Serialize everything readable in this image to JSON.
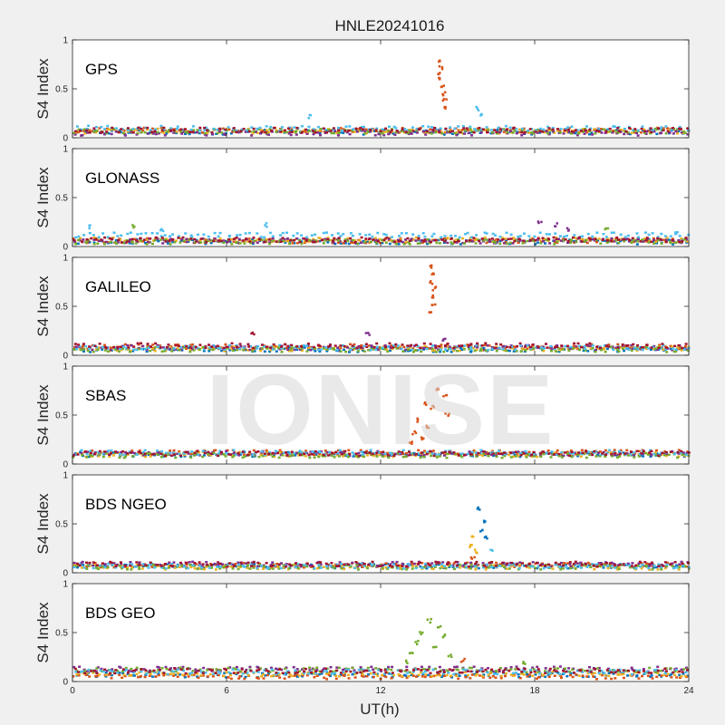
{
  "chart_data": {
    "type": "scatter",
    "title": "HNLE20241016",
    "xlabel": "UT(h)",
    "ylabel": "S4 Index",
    "xlim": [
      0,
      24
    ],
    "ylim": [
      0,
      1
    ],
    "xticks": [
      "0",
      "6",
      "12",
      "18",
      "24"
    ],
    "yticks": [
      "0",
      "0.5",
      "1"
    ],
    "watermark": "IONISE",
    "series_colors": [
      "#0072bd",
      "#d95319",
      "#edb120",
      "#7e2f8e",
      "#77ac30",
      "#4dbeee",
      "#a2142f"
    ],
    "panels": [
      {
        "name": "GPS",
        "baseline": [
          {
            "color": "#0072bd",
            "level": 0.06
          },
          {
            "color": "#d95319",
            "level": 0.08
          },
          {
            "color": "#edb120",
            "level": 0.07
          },
          {
            "color": "#7e2f8e",
            "level": 0.05
          },
          {
            "color": "#77ac30",
            "level": 0.07
          },
          {
            "color": "#4dbeee",
            "level": 0.1
          },
          {
            "color": "#a2142f",
            "level": 0.08
          }
        ],
        "events": [
          {
            "color": "#d95319",
            "x": 14.3,
            "y": 0.78
          },
          {
            "color": "#d95319",
            "x": 14.35,
            "y": 0.72
          },
          {
            "color": "#d95319",
            "x": 14.3,
            "y": 0.66
          },
          {
            "color": "#d95319",
            "x": 14.25,
            "y": 0.6
          },
          {
            "color": "#d95319",
            "x": 14.4,
            "y": 0.52
          },
          {
            "color": "#d95319",
            "x": 14.45,
            "y": 0.45
          },
          {
            "color": "#d95319",
            "x": 14.5,
            "y": 0.38
          },
          {
            "color": "#d95319",
            "x": 14.55,
            "y": 0.3
          },
          {
            "color": "#4dbeee",
            "x": 9.2,
            "y": 0.22
          },
          {
            "color": "#4dbeee",
            "x": 15.8,
            "y": 0.3
          },
          {
            "color": "#4dbeee",
            "x": 15.9,
            "y": 0.24
          }
        ]
      },
      {
        "name": "GLONASS",
        "baseline": [
          {
            "color": "#0072bd",
            "level": 0.05
          },
          {
            "color": "#d95319",
            "level": 0.06
          },
          {
            "color": "#edb120",
            "level": 0.07
          },
          {
            "color": "#7e2f8e",
            "level": 0.06
          },
          {
            "color": "#77ac30",
            "level": 0.05
          },
          {
            "color": "#4dbeee",
            "level": 0.12
          },
          {
            "color": "#a2142f",
            "level": 0.07
          }
        ],
        "events": [
          {
            "color": "#4dbeee",
            "x": 0.7,
            "y": 0.2
          },
          {
            "color": "#77ac30",
            "x": 2.4,
            "y": 0.2
          },
          {
            "color": "#4dbeee",
            "x": 3.5,
            "y": 0.17
          },
          {
            "color": "#4dbeee",
            "x": 7.5,
            "y": 0.22
          },
          {
            "color": "#7e2f8e",
            "x": 18.2,
            "y": 0.24
          },
          {
            "color": "#7e2f8e",
            "x": 18.8,
            "y": 0.22
          },
          {
            "color": "#7e2f8e",
            "x": 19.3,
            "y": 0.18
          },
          {
            "color": "#77ac30",
            "x": 20.8,
            "y": 0.19
          },
          {
            "color": "#4dbeee",
            "x": 23.5,
            "y": 0.14
          }
        ]
      },
      {
        "name": "GALILEO",
        "baseline": [
          {
            "color": "#0072bd",
            "level": 0.06
          },
          {
            "color": "#d95319",
            "level": 0.09
          },
          {
            "color": "#edb120",
            "level": 0.07
          },
          {
            "color": "#7e2f8e",
            "level": 0.08
          },
          {
            "color": "#77ac30",
            "level": 0.06
          },
          {
            "color": "#4dbeee",
            "level": 0.08
          },
          {
            "color": "#a2142f",
            "level": 0.1
          }
        ],
        "events": [
          {
            "color": "#d95319",
            "x": 14.0,
            "y": 0.9
          },
          {
            "color": "#d95319",
            "x": 14.05,
            "y": 0.82
          },
          {
            "color": "#d95319",
            "x": 13.95,
            "y": 0.74
          },
          {
            "color": "#d95319",
            "x": 14.1,
            "y": 0.68
          },
          {
            "color": "#d95319",
            "x": 14.0,
            "y": 0.6
          },
          {
            "color": "#d95319",
            "x": 14.05,
            "y": 0.52
          },
          {
            "color": "#d95319",
            "x": 13.9,
            "y": 0.44
          },
          {
            "color": "#a2142f",
            "x": 7.0,
            "y": 0.22
          },
          {
            "color": "#7e2f8e",
            "x": 11.5,
            "y": 0.22
          },
          {
            "color": "#7e2f8e",
            "x": 14.5,
            "y": 0.16
          }
        ]
      },
      {
        "name": "SBAS",
        "baseline": [
          {
            "color": "#0072bd",
            "level": 0.1
          },
          {
            "color": "#d95319",
            "level": 0.12
          },
          {
            "color": "#edb120",
            "level": 0.1
          },
          {
            "color": "#7e2f8e",
            "level": 0.11
          },
          {
            "color": "#77ac30",
            "level": 0.09
          },
          {
            "color": "#4dbeee",
            "level": 0.12
          },
          {
            "color": "#a2142f",
            "level": 0.11
          }
        ],
        "events": [
          {
            "color": "#d95319",
            "x": 14.2,
            "y": 0.76
          },
          {
            "color": "#d95319",
            "x": 14.5,
            "y": 0.7
          },
          {
            "color": "#d95319",
            "x": 13.7,
            "y": 0.62
          },
          {
            "color": "#d95319",
            "x": 14.0,
            "y": 0.58
          },
          {
            "color": "#d95319",
            "x": 14.6,
            "y": 0.5
          },
          {
            "color": "#d95319",
            "x": 13.5,
            "y": 0.45
          },
          {
            "color": "#d95319",
            "x": 13.8,
            "y": 0.38
          },
          {
            "color": "#d95319",
            "x": 13.3,
            "y": 0.32
          },
          {
            "color": "#d95319",
            "x": 13.6,
            "y": 0.26
          },
          {
            "color": "#d95319",
            "x": 13.2,
            "y": 0.22
          }
        ]
      },
      {
        "name": "BDS NGEO",
        "baseline": [
          {
            "color": "#0072bd",
            "level": 0.07
          },
          {
            "color": "#d95319",
            "level": 0.08
          },
          {
            "color": "#edb120",
            "level": 0.06
          },
          {
            "color": "#7e2f8e",
            "level": 0.09
          },
          {
            "color": "#77ac30",
            "level": 0.06
          },
          {
            "color": "#4dbeee",
            "level": 0.07
          },
          {
            "color": "#a2142f",
            "level": 0.09
          }
        ],
        "events": [
          {
            "color": "#0072bd",
            "x": 15.8,
            "y": 0.65
          },
          {
            "color": "#0072bd",
            "x": 16.0,
            "y": 0.52
          },
          {
            "color": "#0072bd",
            "x": 15.9,
            "y": 0.44
          },
          {
            "color": "#0072bd",
            "x": 16.1,
            "y": 0.36
          },
          {
            "color": "#edb120",
            "x": 15.6,
            "y": 0.38
          },
          {
            "color": "#edb120",
            "x": 15.5,
            "y": 0.28
          },
          {
            "color": "#edb120",
            "x": 15.7,
            "y": 0.22
          },
          {
            "color": "#4dbeee",
            "x": 16.3,
            "y": 0.22
          },
          {
            "color": "#d95319",
            "x": 15.6,
            "y": 0.16
          }
        ]
      },
      {
        "name": "BDS GEO",
        "baseline": [
          {
            "color": "#0072bd",
            "level": 0.07
          },
          {
            "color": "#d95319",
            "level": 0.05
          },
          {
            "color": "#edb120",
            "level": 0.08
          },
          {
            "color": "#7e2f8e",
            "level": 0.13
          },
          {
            "color": "#77ac30",
            "level": 0.12
          },
          {
            "color": "#4dbeee",
            "level": 0.1
          },
          {
            "color": "#a2142f",
            "level": 0.11
          }
        ],
        "events": [
          {
            "color": "#77ac30",
            "x": 13.9,
            "y": 0.62
          },
          {
            "color": "#77ac30",
            "x": 14.3,
            "y": 0.56
          },
          {
            "color": "#77ac30",
            "x": 13.6,
            "y": 0.5
          },
          {
            "color": "#77ac30",
            "x": 14.5,
            "y": 0.46
          },
          {
            "color": "#77ac30",
            "x": 13.4,
            "y": 0.4
          },
          {
            "color": "#77ac30",
            "x": 14.1,
            "y": 0.34
          },
          {
            "color": "#77ac30",
            "x": 13.2,
            "y": 0.28
          },
          {
            "color": "#77ac30",
            "x": 14.7,
            "y": 0.26
          },
          {
            "color": "#77ac30",
            "x": 13.0,
            "y": 0.2
          },
          {
            "color": "#d95319",
            "x": 15.2,
            "y": 0.22
          },
          {
            "color": "#77ac30",
            "x": 17.6,
            "y": 0.2
          }
        ]
      }
    ]
  }
}
